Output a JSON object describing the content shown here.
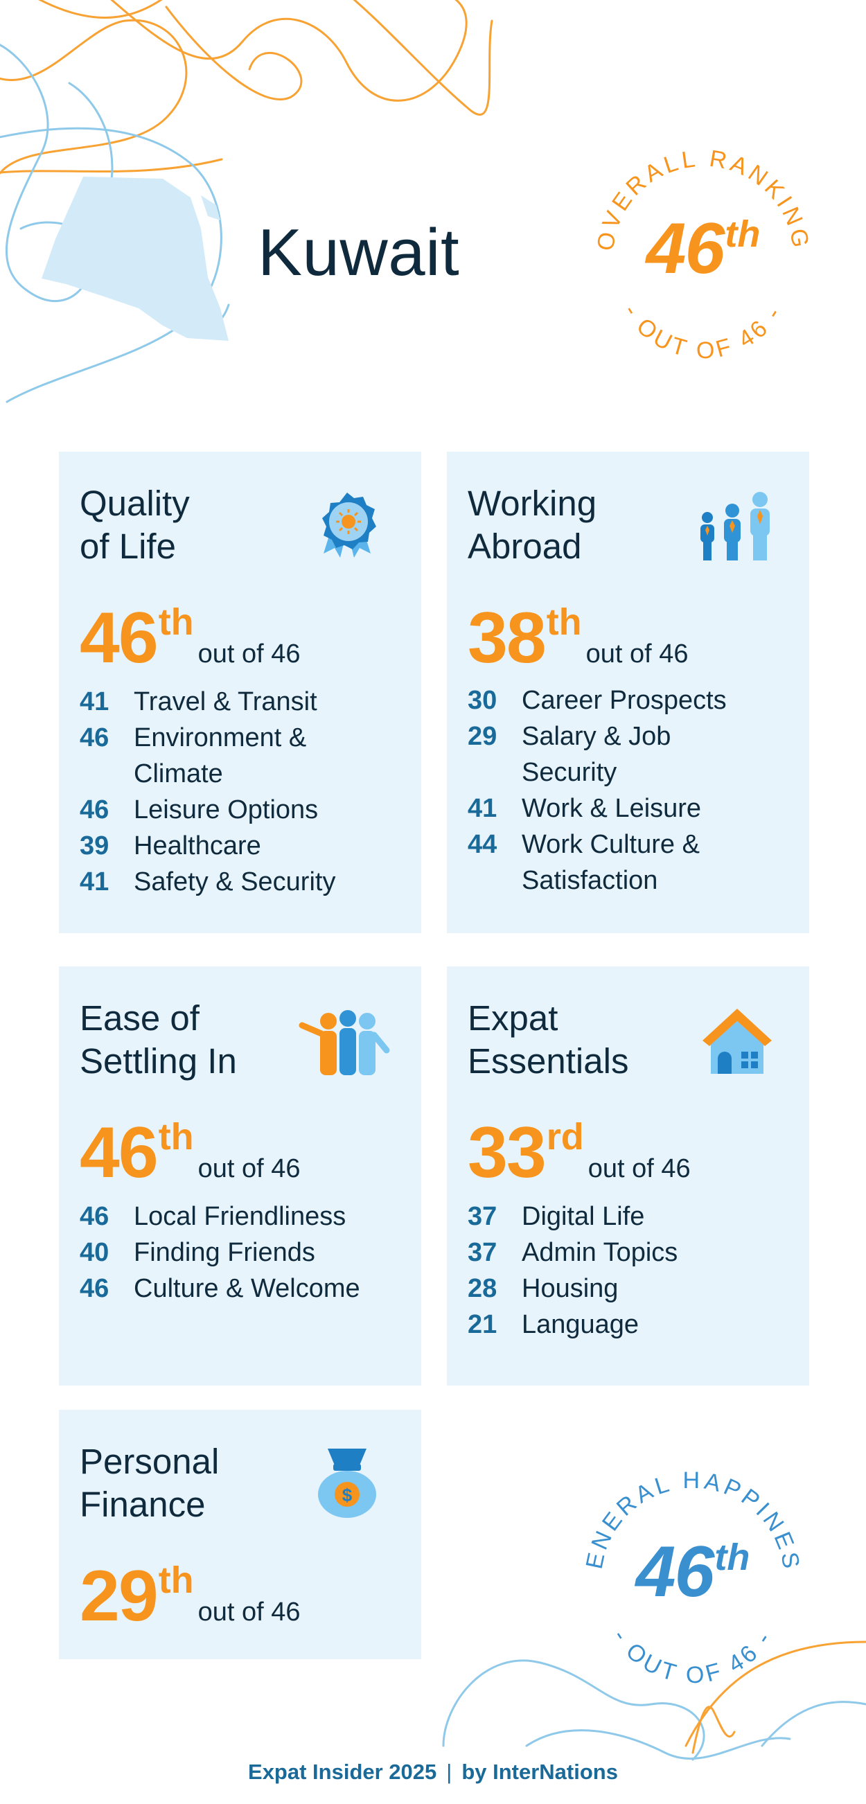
{
  "country": "Kuwait",
  "overall": {
    "arc_top": "OVERALL RANKING",
    "arc_bottom": "- OUT OF 46 -",
    "rank": "46",
    "suffix": "th",
    "color": "#f7941d"
  },
  "happiness": {
    "arc_top": "GENERAL HAPPINESS",
    "arc_bottom": "- OUT OF 46 -",
    "rank": "46",
    "suffix": "th",
    "color": "#3a8fcf"
  },
  "cards": [
    {
      "title_lines": [
        "Quality",
        "of Life"
      ],
      "icon": "award-medal-icon",
      "rank": "46",
      "suffix": "th",
      "out_of": "out of 46",
      "items": [
        {
          "rank": "41",
          "label_lines": [
            "Travel & Transit"
          ]
        },
        {
          "rank": "46",
          "label_lines": [
            "Environment &",
            "Climate"
          ]
        },
        {
          "rank": "46",
          "label_lines": [
            "Leisure Options"
          ]
        },
        {
          "rank": "39",
          "label_lines": [
            "Healthcare"
          ]
        },
        {
          "rank": "41",
          "label_lines": [
            "Safety & Security"
          ]
        }
      ]
    },
    {
      "title_lines": [
        "Working",
        "Abroad"
      ],
      "icon": "career-people-icon",
      "rank": "38",
      "suffix": "th",
      "out_of": "out of 46",
      "items": [
        {
          "rank": "30",
          "label_lines": [
            "Career Prospects"
          ]
        },
        {
          "rank": "29",
          "label_lines": [
            "Salary & Job",
            "Security"
          ]
        },
        {
          "rank": "41",
          "label_lines": [
            "Work & Leisure"
          ]
        },
        {
          "rank": "44",
          "label_lines": [
            "Work Culture &",
            "Satisfaction"
          ]
        }
      ]
    },
    {
      "title_lines": [
        "Ease of",
        "Settling In"
      ],
      "icon": "friends-group-icon",
      "rank": "46",
      "suffix": "th",
      "out_of": "out of 46",
      "items": [
        {
          "rank": "46",
          "label_lines": [
            "Local Friendliness"
          ]
        },
        {
          "rank": "40",
          "label_lines": [
            "Finding Friends"
          ]
        },
        {
          "rank": "46",
          "label_lines": [
            "Culture & Welcome"
          ]
        }
      ]
    },
    {
      "title_lines": [
        "Expat",
        "Essentials"
      ],
      "icon": "house-icon",
      "rank": "33",
      "suffix": "rd",
      "out_of": "out of 46",
      "items": [
        {
          "rank": "37",
          "label_lines": [
            "Digital Life"
          ]
        },
        {
          "rank": "37",
          "label_lines": [
            "Admin Topics"
          ]
        },
        {
          "rank": "28",
          "label_lines": [
            "Housing"
          ]
        },
        {
          "rank": "21",
          "label_lines": [
            "Language"
          ]
        }
      ]
    },
    {
      "title_lines": [
        "Personal",
        "Finance"
      ],
      "icon": "money-bag-icon",
      "rank": "29",
      "suffix": "th",
      "out_of": "out of 46",
      "items": []
    }
  ],
  "footer": {
    "left": "Expat Insider 2025",
    "sep": "|",
    "right": "by InterNations"
  }
}
